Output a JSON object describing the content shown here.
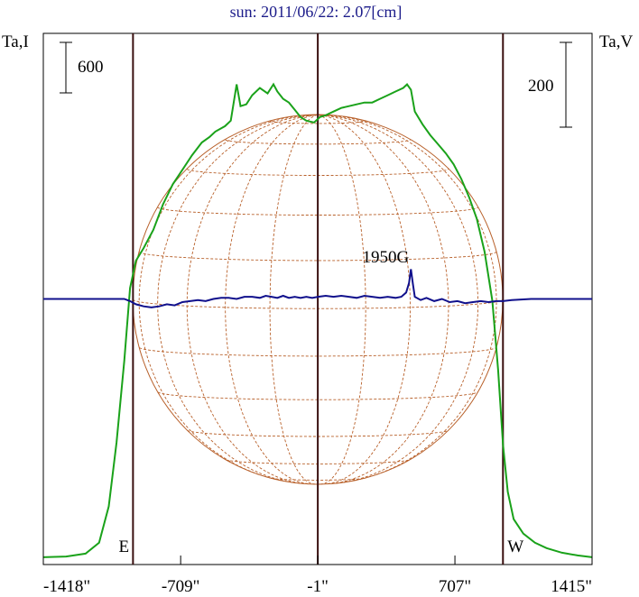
{
  "chart_data": {
    "type": "line",
    "title": "sun: 2011/06/22: 2.07[cm]",
    "ylabel_left": "Ta,I",
    "ylabel_right": "Ta,V",
    "scale_bar_left": "600",
    "scale_bar_right": "200",
    "x_ticks": [
      {
        "value": -1418,
        "label": "-1418\""
      },
      {
        "value": -709,
        "label": "-709\""
      },
      {
        "value": -1,
        "label": "-1\""
      },
      {
        "value": 707,
        "label": "707\""
      },
      {
        "value": 1415,
        "label": "1415\""
      }
    ],
    "xlim": [
      -1418,
      1415
    ],
    "limb_markers": [
      {
        "x": -955,
        "label": "E"
      },
      {
        "x": 955,
        "label": "W"
      }
    ],
    "center_line_x": -1,
    "annotation": {
      "text": "1950G",
      "x": 480
    },
    "colors": {
      "intensity": "#1aa21a",
      "polarization": "#10108c",
      "limb_line": "#3a1010",
      "grid": "#b8602a",
      "title": "#1c1c8a"
    },
    "series": [
      {
        "name": "I",
        "y_left_units": true,
        "points": [
          [
            -1418,
            20
          ],
          [
            -1300,
            24
          ],
          [
            -1200,
            40
          ],
          [
            -1130,
            100
          ],
          [
            -1080,
            300
          ],
          [
            -1040,
            650
          ],
          [
            -1000,
            1100
          ],
          [
            -970,
            1500
          ],
          [
            -940,
            1650
          ],
          [
            -900,
            1720
          ],
          [
            -850,
            1820
          ],
          [
            -800,
            1960
          ],
          [
            -750,
            2070
          ],
          [
            -700,
            2150
          ],
          [
            -650,
            2230
          ],
          [
            -600,
            2300
          ],
          [
            -560,
            2330
          ],
          [
            -530,
            2360
          ],
          [
            -480,
            2390
          ],
          [
            -450,
            2420
          ],
          [
            -420,
            2620
          ],
          [
            -400,
            2500
          ],
          [
            -370,
            2510
          ],
          [
            -340,
            2560
          ],
          [
            -300,
            2600
          ],
          [
            -260,
            2570
          ],
          [
            -230,
            2620
          ],
          [
            -210,
            2580
          ],
          [
            -180,
            2540
          ],
          [
            -150,
            2520
          ],
          [
            -120,
            2480
          ],
          [
            -90,
            2440
          ],
          [
            -60,
            2420
          ],
          [
            -20,
            2410
          ],
          [
            10,
            2440
          ],
          [
            40,
            2450
          ],
          [
            80,
            2470
          ],
          [
            120,
            2490
          ],
          [
            160,
            2500
          ],
          [
            200,
            2510
          ],
          [
            240,
            2520
          ],
          [
            280,
            2520
          ],
          [
            320,
            2540
          ],
          [
            360,
            2560
          ],
          [
            400,
            2580
          ],
          [
            440,
            2600
          ],
          [
            460,
            2620
          ],
          [
            480,
            2590
          ],
          [
            500,
            2470
          ],
          [
            540,
            2400
          ],
          [
            580,
            2340
          ],
          [
            620,
            2290
          ],
          [
            660,
            2240
          ],
          [
            700,
            2180
          ],
          [
            740,
            2100
          ],
          [
            780,
            2000
          ],
          [
            820,
            1880
          ],
          [
            860,
            1700
          ],
          [
            900,
            1430
          ],
          [
            930,
            1050
          ],
          [
            955,
            640
          ],
          [
            980,
            380
          ],
          [
            1010,
            230
          ],
          [
            1060,
            150
          ],
          [
            1120,
            100
          ],
          [
            1180,
            70
          ],
          [
            1260,
            45
          ],
          [
            1340,
            30
          ],
          [
            1415,
            20
          ]
        ]
      },
      {
        "name": "V",
        "y_right_units": true,
        "points": [
          [
            -1418,
            0
          ],
          [
            -1000,
            0
          ],
          [
            -970,
            -2
          ],
          [
            -940,
            -5
          ],
          [
            -900,
            -7
          ],
          [
            -860,
            -8
          ],
          [
            -820,
            -7
          ],
          [
            -780,
            -5
          ],
          [
            -740,
            -6
          ],
          [
            -700,
            -3
          ],
          [
            -660,
            -2
          ],
          [
            -620,
            -1
          ],
          [
            -580,
            -2
          ],
          [
            -540,
            0
          ],
          [
            -500,
            1
          ],
          [
            -460,
            1
          ],
          [
            -420,
            0
          ],
          [
            -380,
            2
          ],
          [
            -340,
            2
          ],
          [
            -300,
            1
          ],
          [
            -270,
            3
          ],
          [
            -240,
            2
          ],
          [
            -210,
            1
          ],
          [
            -180,
            3
          ],
          [
            -150,
            1
          ],
          [
            -120,
            2
          ],
          [
            -90,
            1
          ],
          [
            -60,
            2
          ],
          [
            -30,
            1
          ],
          [
            0,
            2
          ],
          [
            40,
            3
          ],
          [
            80,
            2
          ],
          [
            120,
            3
          ],
          [
            160,
            2
          ],
          [
            200,
            1
          ],
          [
            240,
            3
          ],
          [
            280,
            2
          ],
          [
            320,
            1
          ],
          [
            360,
            2
          ],
          [
            400,
            1
          ],
          [
            430,
            2
          ],
          [
            455,
            6
          ],
          [
            470,
            15
          ],
          [
            480,
            28
          ],
          [
            490,
            14
          ],
          [
            500,
            2
          ],
          [
            530,
            -1
          ],
          [
            560,
            1
          ],
          [
            600,
            -2
          ],
          [
            640,
            0
          ],
          [
            680,
            -3
          ],
          [
            720,
            -2
          ],
          [
            760,
            -4
          ],
          [
            800,
            -3
          ],
          [
            840,
            -2
          ],
          [
            880,
            -3
          ],
          [
            920,
            -2
          ],
          [
            955,
            -2
          ],
          [
            1000,
            -1
          ],
          [
            1100,
            0
          ],
          [
            1200,
            0
          ],
          [
            1415,
            0
          ]
        ]
      }
    ],
    "ylim_left": [
      -20,
      2900
    ],
    "ylim_right": [
      -250,
      250
    ]
  }
}
